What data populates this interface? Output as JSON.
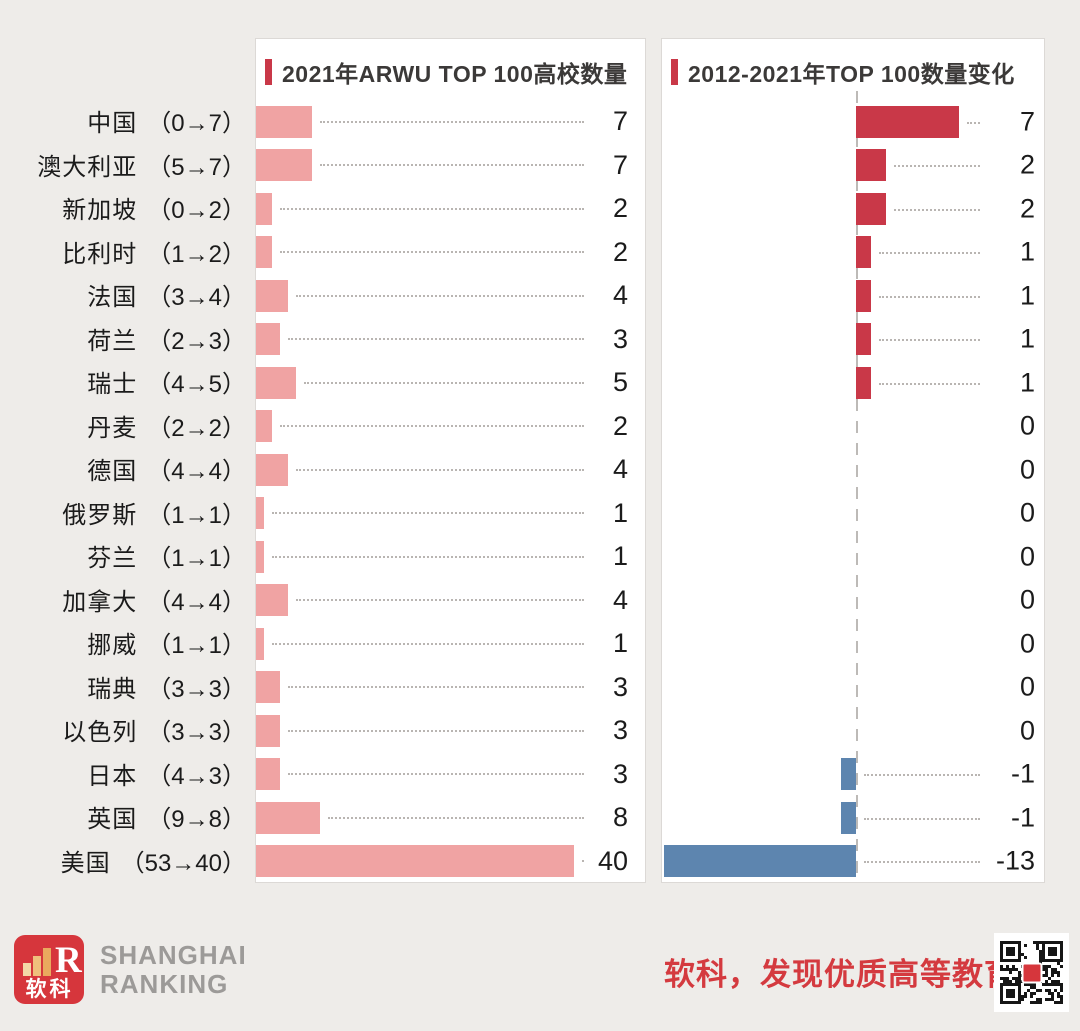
{
  "left_panel": {
    "title": "2021年ARWU TOP 100高校数量"
  },
  "right_panel": {
    "title": "2012-2021年TOP 100数量变化"
  },
  "chart_data": {
    "type": "bar",
    "orientation": "horizontal",
    "categories": [
      "中国",
      "澳大利亚",
      "新加坡",
      "比利时",
      "法国",
      "荷兰",
      "瑞士",
      "丹麦",
      "德国",
      "俄罗斯",
      "芬兰",
      "加拿大",
      "挪威",
      "瑞典",
      "以色列",
      "日本",
      "英国",
      "美国"
    ],
    "category_ranges": [
      "（0→7）",
      "（5→7）",
      "（0→2）",
      "（1→2）",
      "（3→4）",
      "（2→3）",
      "（4→5）",
      "（2→2）",
      "（4→4）",
      "（1→1）",
      "（1→1）",
      "（4→4）",
      "（1→1）",
      "（3→3）",
      "（3→3）",
      "（4→3）",
      "（9→8）",
      "（53→40）"
    ],
    "series": [
      {
        "name": "2021年ARWU TOP 100高校数量",
        "values": [
          7,
          7,
          2,
          2,
          4,
          3,
          5,
          2,
          4,
          1,
          1,
          4,
          1,
          3,
          3,
          3,
          8,
          40
        ]
      },
      {
        "name": "2012-2021年TOP 100数量变化",
        "values": [
          7,
          2,
          2,
          1,
          1,
          1,
          1,
          0,
          0,
          0,
          0,
          0,
          0,
          0,
          0,
          -1,
          -1,
          -13
        ]
      }
    ],
    "axis": {
      "count_max": 40,
      "change_min": -13,
      "change_max": 7,
      "zero_line": true
    },
    "legend_position": "panel-titles",
    "grid": "dotted-leaders",
    "colors": {
      "count_bar": "#f0a3a3",
      "increase_bar": "#c93848",
      "decrease_bar": "#5d85af",
      "title_marker": "#c93848",
      "background": "#eeece9"
    }
  },
  "footer": {
    "logo_text": "软科",
    "logo_r": "R",
    "brand_line1": "SHANGHAI",
    "brand_line2": "RANKING",
    "slogan": "软科，发现优质高等教育"
  }
}
